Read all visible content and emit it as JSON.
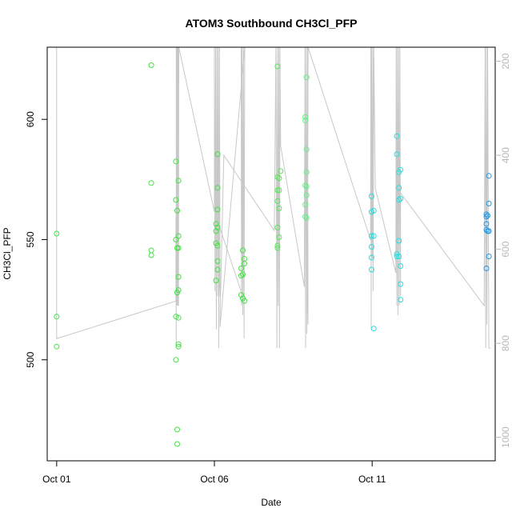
{
  "chart_data": {
    "type": "scatter",
    "title": "ATOM3 Southbound CH3Cl_PFP",
    "xlabel": "Date",
    "ylabel": "CH3Cl_PFP",
    "x_axis": {
      "unit": "days",
      "range": [
        -0.3,
        13.9
      ],
      "ticks": [
        {
          "value": 0,
          "label": "Oct 01"
        },
        {
          "value": 5,
          "label": "Oct 06"
        },
        {
          "value": 10,
          "label": "Oct 11"
        }
      ]
    },
    "y_axis": {
      "range": [
        458,
        630
      ],
      "ticks": [
        500,
        550,
        600
      ]
    },
    "y2_axis": {
      "description": "pressure altitude overlay (grey line), inverted",
      "range": [
        1050,
        170
      ],
      "ticks": [
        200,
        400,
        600,
        800,
        1000
      ],
      "color": "#b8b8b8"
    },
    "grid": false,
    "series": [
      {
        "color": "#44e044",
        "points": [
          [
            0.0,
            552.5
          ],
          [
            0.0,
            518.0
          ],
          [
            0.0,
            505.5
          ],
          [
            3.0,
            622.5
          ],
          [
            3.0,
            573.5
          ],
          [
            3.0,
            545.5
          ],
          [
            3.0,
            543.5
          ],
          [
            3.78,
            582.5
          ],
          [
            3.78,
            566.5
          ],
          [
            3.78,
            550.0
          ],
          [
            3.78,
            518.0
          ],
          [
            3.78,
            500.0
          ],
          [
            3.82,
            562.0
          ],
          [
            3.82,
            546.5
          ],
          [
            3.82,
            528.0
          ],
          [
            3.82,
            471.0
          ],
          [
            3.82,
            465.0
          ],
          [
            3.86,
            574.5
          ],
          [
            3.86,
            551.5
          ],
          [
            3.86,
            546.5
          ],
          [
            3.86,
            529.0
          ],
          [
            3.86,
            534.5
          ],
          [
            3.86,
            517.5
          ],
          [
            3.86,
            506.5
          ],
          [
            3.86,
            505.5
          ],
          [
            5.05,
            556.5
          ],
          [
            5.05,
            553.5
          ],
          [
            5.05,
            548.5
          ],
          [
            5.05,
            533.0
          ],
          [
            5.1,
            585.5
          ],
          [
            5.1,
            571.5
          ],
          [
            5.1,
            562.5
          ],
          [
            5.1,
            555.0
          ],
          [
            5.1,
            547.5
          ],
          [
            5.1,
            541.0
          ],
          [
            5.1,
            537.5
          ],
          [
            5.85,
            538.0
          ],
          [
            5.85,
            535.0
          ],
          [
            5.85,
            527.0
          ],
          [
            5.9,
            545.5
          ],
          [
            5.9,
            535.5
          ],
          [
            5.9,
            525.5
          ],
          [
            5.95,
            542.0
          ],
          [
            5.95,
            540.0
          ],
          [
            5.95,
            524.5
          ]
        ]
      },
      {
        "color": "#55e855",
        "points": [
          [
            7.0,
            622.0
          ],
          [
            7.0,
            576.0
          ],
          [
            7.0,
            570.5
          ],
          [
            7.0,
            566.0
          ],
          [
            7.0,
            555.0
          ],
          [
            7.0,
            547.5
          ],
          [
            7.0,
            546.5
          ],
          [
            7.05,
            575.5
          ],
          [
            7.05,
            570.5
          ],
          [
            7.05,
            563.0
          ],
          [
            7.05,
            551.0
          ],
          [
            7.1,
            578.5
          ]
        ]
      },
      {
        "color": "#66ee88",
        "points": [
          [
            7.88,
            601.0
          ],
          [
            7.88,
            599.5
          ],
          [
            7.88,
            572.5
          ],
          [
            7.88,
            564.5
          ],
          [
            7.88,
            559.5
          ],
          [
            7.92,
            617.5
          ],
          [
            7.92,
            587.5
          ],
          [
            7.92,
            578.0
          ],
          [
            7.92,
            572.0
          ],
          [
            7.92,
            568.5
          ],
          [
            7.92,
            559.0
          ]
        ]
      },
      {
        "color": "#22dddd",
        "points": [
          [
            9.98,
            568.0
          ],
          [
            9.98,
            561.5
          ],
          [
            9.98,
            551.5
          ],
          [
            9.98,
            547.0
          ],
          [
            9.98,
            542.5
          ],
          [
            9.98,
            537.5
          ],
          [
            10.05,
            562.0
          ],
          [
            10.05,
            551.5
          ],
          [
            10.05,
            513.0
          ]
        ]
      },
      {
        "color": "#22e0e0",
        "points": [
          [
            10.78,
            593.0
          ],
          [
            10.78,
            585.5
          ],
          [
            10.78,
            544.0
          ],
          [
            10.78,
            543.0
          ],
          [
            10.85,
            578.0
          ],
          [
            10.85,
            571.5
          ],
          [
            10.85,
            566.5
          ],
          [
            10.85,
            549.5
          ],
          [
            10.85,
            543.0
          ],
          [
            10.9,
            579.0
          ],
          [
            10.9,
            567.0
          ],
          [
            10.9,
            539.0
          ],
          [
            10.9,
            531.5
          ],
          [
            10.9,
            525.0
          ]
        ]
      },
      {
        "color": "#2299e8",
        "points": [
          [
            13.62,
            560.5
          ],
          [
            13.62,
            559.5
          ],
          [
            13.62,
            556.5
          ],
          [
            13.62,
            554.0
          ],
          [
            13.62,
            538.0
          ],
          [
            13.66,
            560.0
          ],
          [
            13.66,
            553.5
          ],
          [
            13.7,
            576.5
          ],
          [
            13.7,
            565.0
          ],
          [
            13.7,
            553.5
          ],
          [
            13.7,
            543.0
          ]
        ]
      }
    ],
    "overlay_line": {
      "color": "#c8c8c8",
      "points": [
        [
          0.0,
          170
        ],
        [
          0.0,
          790
        ],
        [
          3.78,
          710
        ],
        [
          3.78,
          530
        ],
        [
          3.79,
          810
        ],
        [
          3.79,
          170
        ],
        [
          3.8,
          720
        ],
        [
          3.81,
          170
        ],
        [
          3.82,
          720
        ],
        [
          3.83,
          170
        ],
        [
          3.84,
          720
        ],
        [
          3.85,
          170
        ],
        [
          3.86,
          720
        ],
        [
          3.87,
          170
        ],
        [
          5.0,
          520
        ],
        [
          5.0,
          170
        ],
        [
          5.02,
          690
        ],
        [
          5.04,
          170
        ],
        [
          5.06,
          770
        ],
        [
          5.08,
          170
        ],
        [
          5.1,
          700
        ],
        [
          5.12,
          170
        ],
        [
          5.14,
          810
        ],
        [
          5.16,
          170
        ],
        [
          5.18,
          700
        ],
        [
          5.1,
          540
        ],
        [
          5.9,
          700
        ],
        [
          5.85,
          170
        ],
        [
          5.86,
          720
        ],
        [
          5.88,
          170
        ],
        [
          5.9,
          740
        ],
        [
          5.92,
          170
        ],
        [
          5.94,
          790
        ],
        [
          5.96,
          170
        ],
        [
          5.18,
          765
        ],
        [
          5.18,
          740
        ],
        [
          5.3,
          400
        ],
        [
          6.9,
          560
        ],
        [
          6.95,
          170
        ],
        [
          6.98,
          810
        ],
        [
          7.0,
          170
        ],
        [
          7.02,
          720
        ],
        [
          7.04,
          170
        ],
        [
          7.06,
          810
        ],
        [
          7.08,
          170
        ],
        [
          7.1,
          380
        ],
        [
          7.85,
          680
        ],
        [
          7.87,
          170
        ],
        [
          7.89,
          810
        ],
        [
          7.91,
          170
        ],
        [
          7.93,
          780
        ],
        [
          7.95,
          170
        ],
        [
          7.97,
          760
        ],
        [
          7.95,
          700
        ],
        [
          7.97,
          170
        ],
        [
          9.95,
          580
        ],
        [
          9.96,
          170
        ],
        [
          9.97,
          770
        ],
        [
          9.98,
          170
        ],
        [
          10.0,
          620
        ],
        [
          10.02,
          170
        ],
        [
          10.03,
          690
        ],
        [
          10.05,
          170
        ],
        [
          10.1,
          470
        ],
        [
          10.75,
          650
        ],
        [
          10.76,
          170
        ],
        [
          10.78,
          720
        ],
        [
          10.8,
          170
        ],
        [
          10.82,
          740
        ],
        [
          10.84,
          170
        ],
        [
          10.86,
          720
        ],
        [
          10.88,
          170
        ],
        [
          10.9,
          700
        ],
        [
          10.9,
          480
        ],
        [
          13.55,
          720
        ],
        [
          13.58,
          170
        ],
        [
          13.6,
          810
        ],
        [
          13.62,
          170
        ],
        [
          13.64,
          760
        ],
        [
          13.66,
          170
        ],
        [
          13.7,
          810
        ],
        [
          13.75,
          810
        ]
      ]
    }
  }
}
